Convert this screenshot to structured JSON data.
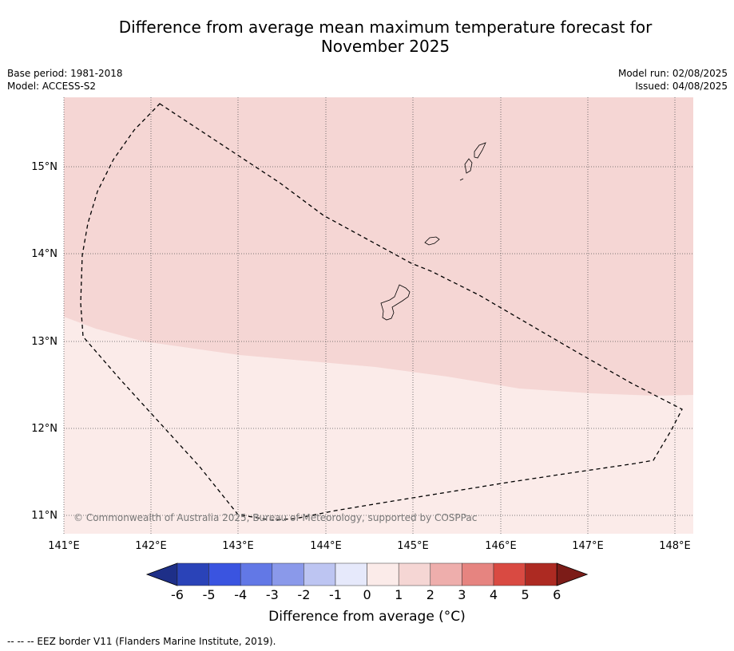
{
  "title_line1": "Difference from average mean maximum temperature forecast for",
  "title_line2": "November 2025",
  "meta": {
    "base_period": "Base period: 1981-2018",
    "model": "Model: ACCESS-S2",
    "model_run": "Model run: 02/08/2025",
    "issued": "Issued: 04/08/2025"
  },
  "map": {
    "lon_labels": [
      "141°E",
      "142°E",
      "143°E",
      "144°E",
      "145°E",
      "146°E",
      "147°E",
      "148°E"
    ],
    "lat_labels": [
      "15°N",
      "14°N",
      "13°N",
      "12°N",
      "11°N"
    ],
    "copyright": "© Commonwealth of Australia 2025, Bureau of Meteorology, supported by COSPPac",
    "regions": [
      {
        "category": "1 to 2",
        "color": "#f5d6d4"
      },
      {
        "category": "0 to 1",
        "color": "#fbebe9"
      }
    ]
  },
  "colorbar": {
    "title": "Difference from average (°C)",
    "ticks": [
      "-6",
      "-5",
      "-4",
      "-3",
      "-2",
      "-1",
      "0",
      "1",
      "2",
      "3",
      "4",
      "5",
      "6"
    ],
    "colors": [
      "#1e2f88",
      "#2a43b8",
      "#3a54e0",
      "#6278e6",
      "#8a99ea",
      "#bdc5f2",
      "#e6e9fb",
      "#fbebe9",
      "#f5d6d4",
      "#eeaeac",
      "#e68480",
      "#d94a42",
      "#ad2a22",
      "#7c1c18"
    ]
  },
  "footnote": "--  --  -- EEZ border V11 (Flanders Marine Institute, 2019)."
}
